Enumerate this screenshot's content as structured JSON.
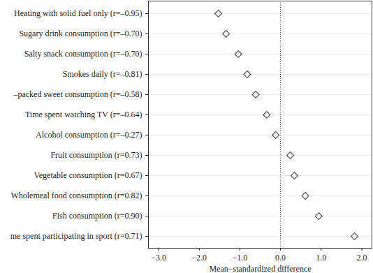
{
  "chart_data": {
    "type": "dot",
    "orientation": "horizontal",
    "categories": [
      "Heating with solid fuel only (r=–0.95)",
      "Sugary drink consumption (r=–0.70)",
      "Salty snack consumption (r=–0.70)",
      "Smokes daily (r=–0.81)",
      "–packed sweet consumption (r=–0.58)",
      "Time spent watching TV (r=–0.64)",
      "Alcohol consumption (r=–0.27)",
      "Fruit consumption (r=0.73)",
      "Vegetable consumption (r=0.67)",
      "Wholemeal food consumption (r=0.82)",
      "Fish consumption (r=0.90)",
      "me spent participating in sport (r=0.71)"
    ],
    "values": [
      -1.53,
      -1.34,
      -1.04,
      -0.82,
      -0.61,
      -0.34,
      -0.12,
      0.24,
      0.34,
      0.61,
      0.94,
      1.82
    ],
    "x_label": "Mean−standardized difference",
    "xlim": [
      -3.25,
      2.25
    ],
    "xticks": [
      -3,
      -2,
      -1,
      0,
      1,
      2
    ],
    "reference_line": 0,
    "grid": true,
    "marker": "diamond",
    "color": "#555555"
  }
}
